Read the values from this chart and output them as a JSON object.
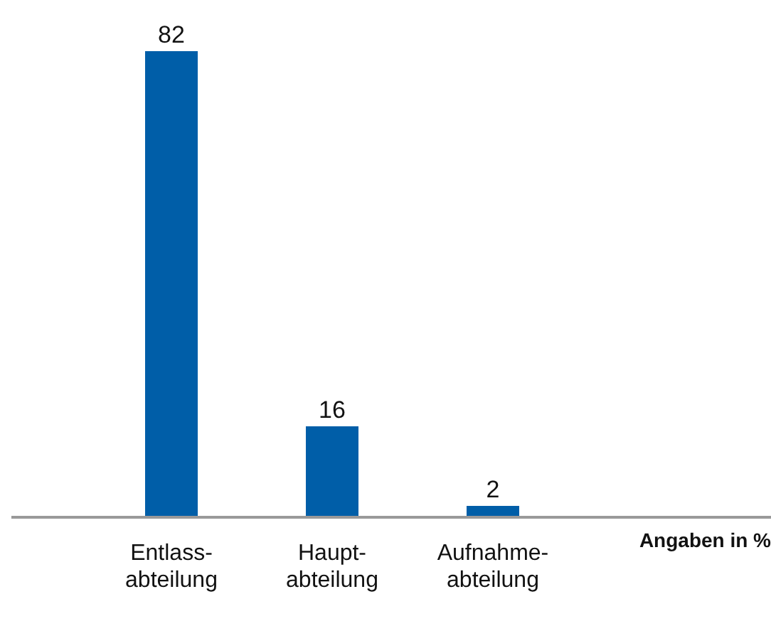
{
  "chart_data": {
    "type": "bar",
    "categories": [
      "Entlass-\nabteilung",
      "Haupt-\nabteilung",
      "Aufnahme-\nabteilung"
    ],
    "values": [
      82,
      16,
      2
    ],
    "color": "#005ea8",
    "data_labels": true,
    "xlabel": "Angaben in %",
    "grid": false,
    "legend": false
  }
}
